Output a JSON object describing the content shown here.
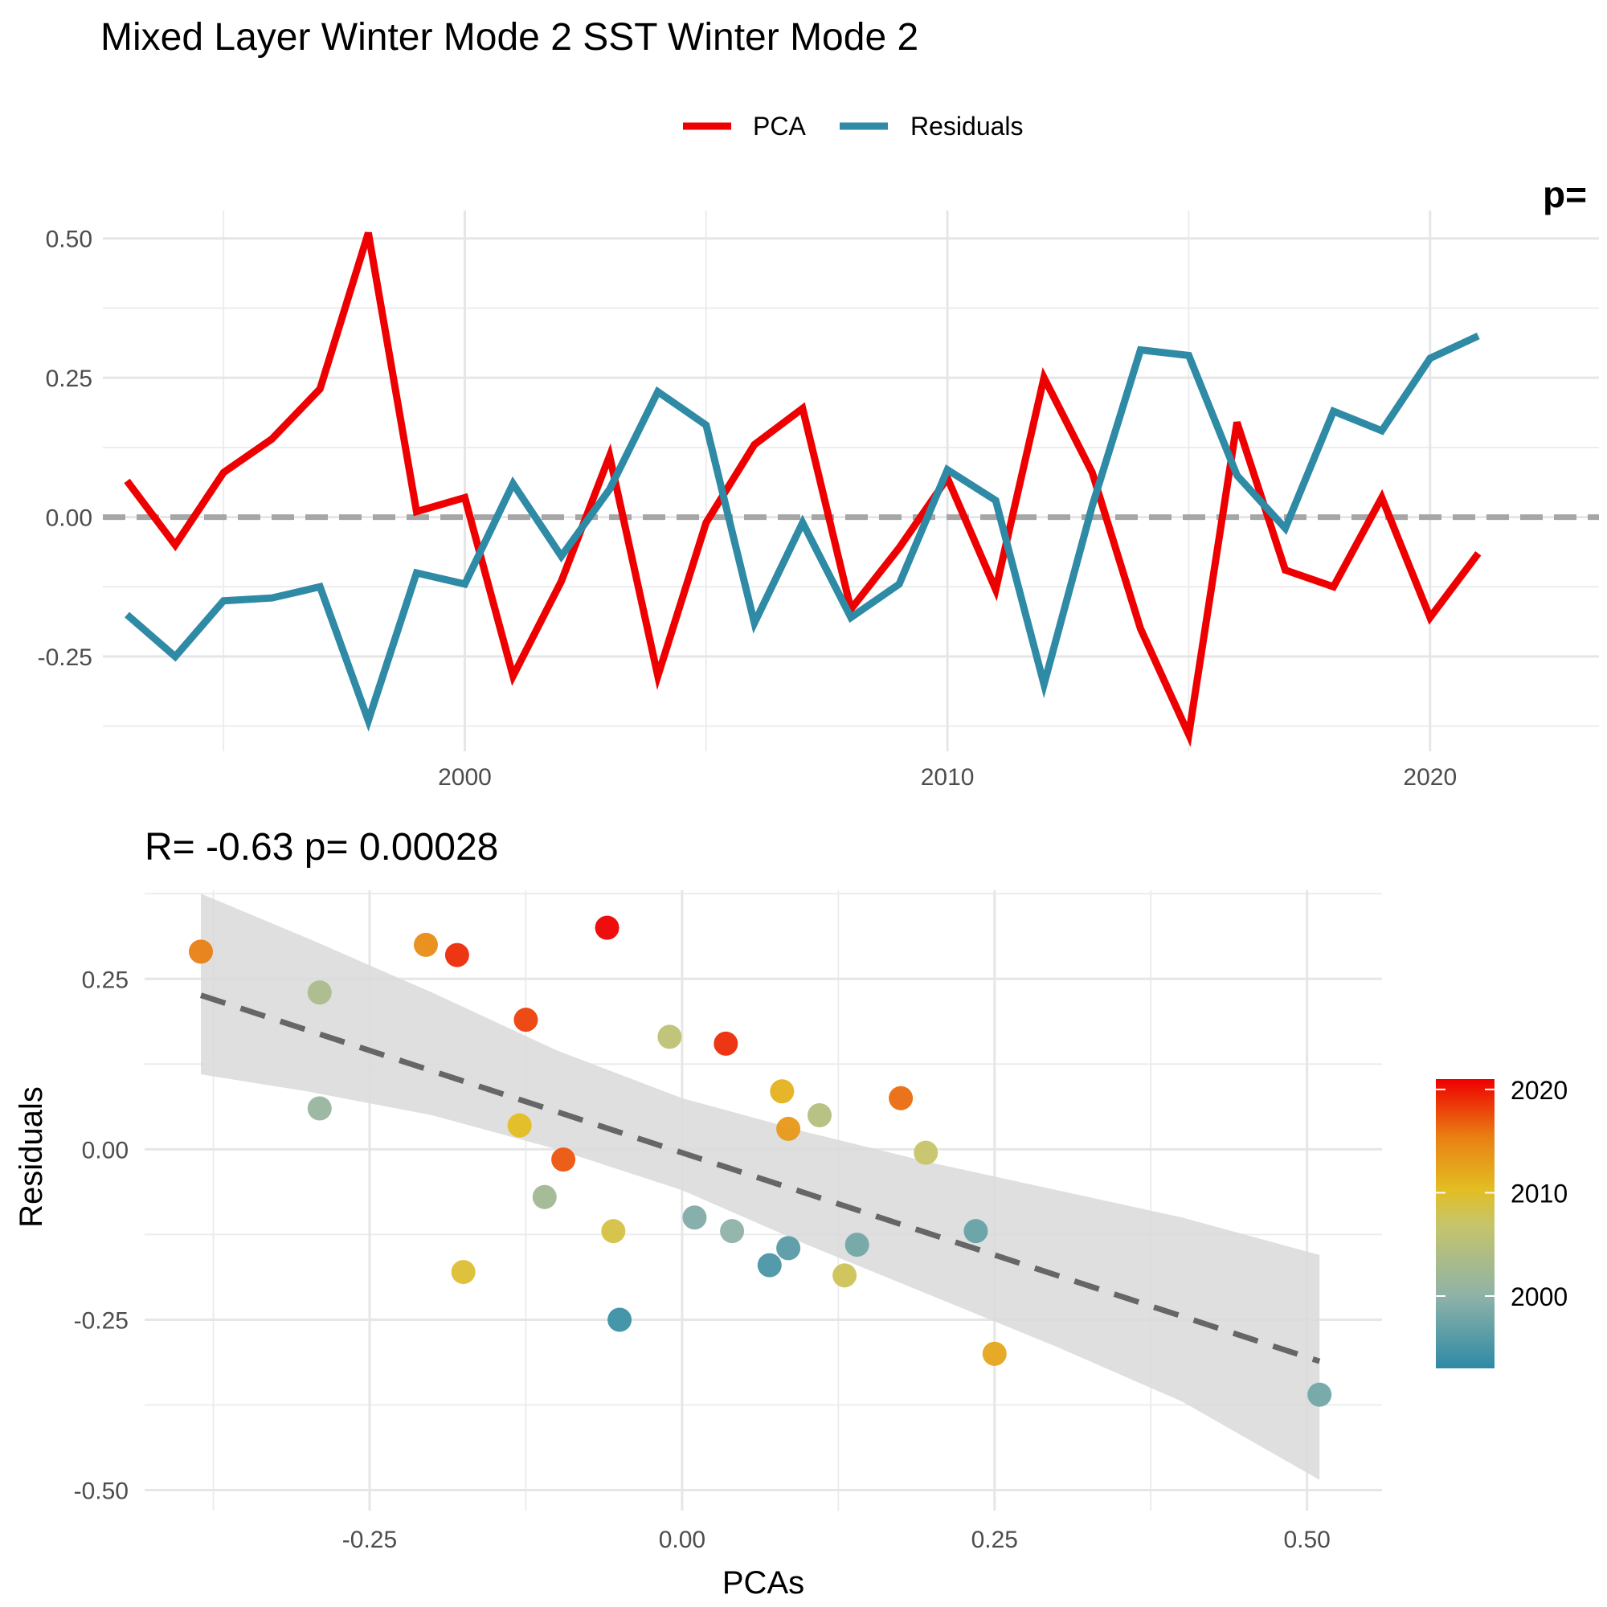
{
  "title": "Mixed Layer Winter Mode 2 SST Winter Mode 2",
  "legend": {
    "items": [
      {
        "label": "PCA",
        "color": "#ee0000"
      },
      {
        "label": "Residuals",
        "color": "#2e8aa5"
      }
    ]
  },
  "top_corner_text": "p=",
  "bottom_stats": "R= -0.63  p= 0.00028",
  "chart_data": [
    {
      "type": "line",
      "x_label": "",
      "y_label": "",
      "xlim": [
        1992.5,
        2023.5
      ],
      "ylim": [
        -0.42,
        0.55
      ],
      "x_ticks": [
        2000,
        2010,
        2020
      ],
      "y_ticks": [
        -0.25,
        0.0,
        0.25,
        0.5
      ],
      "y_tick_labels": [
        "-0.25",
        "0.00",
        "0.25",
        "0.50"
      ],
      "zero_line": {
        "y": 0,
        "style": "dashed",
        "color": "#a6a6a6"
      },
      "x": [
        1993,
        1994,
        1995,
        1996,
        1997,
        1998,
        1999,
        2000,
        2001,
        2002,
        2003,
        2004,
        2005,
        2006,
        2007,
        2008,
        2009,
        2010,
        2011,
        2012,
        2013,
        2014,
        2015,
        2016,
        2017,
        2018,
        2019,
        2020,
        2021
      ],
      "series": [
        {
          "name": "PCA",
          "color": "#ee0000",
          "values": [
            0.065,
            -0.05,
            0.08,
            0.14,
            0.23,
            0.51,
            0.01,
            0.035,
            -0.285,
            -0.115,
            0.11,
            -0.285,
            -0.01,
            0.13,
            0.195,
            -0.165,
            -0.055,
            0.07,
            -0.13,
            0.25,
            0.08,
            -0.2,
            -0.39,
            0.17,
            -0.095,
            -0.125,
            0.035,
            -0.18,
            -0.065
          ]
        },
        {
          "name": "Residuals",
          "color": "#2e8aa5",
          "values": [
            -0.175,
            -0.25,
            -0.15,
            -0.145,
            -0.125,
            -0.365,
            -0.1,
            -0.12,
            0.06,
            -0.07,
            0.05,
            0.225,
            0.165,
            -0.19,
            -0.01,
            -0.18,
            -0.12,
            0.085,
            0.03,
            -0.3,
            0.02,
            0.3,
            0.29,
            0.075,
            -0.02,
            0.19,
            0.155,
            0.285,
            0.325
          ]
        }
      ]
    },
    {
      "type": "scatter",
      "x_label": "PCAs",
      "y_label": "Residuals",
      "xlim": [
        -0.43,
        0.56
      ],
      "ylim": [
        -0.53,
        0.38
      ],
      "x_ticks": [
        -0.25,
        0.0,
        0.25,
        0.5
      ],
      "x_tick_labels": [
        "-0.25",
        "0.00",
        "0.25",
        "0.50"
      ],
      "y_ticks": [
        -0.5,
        -0.25,
        0.0,
        0.25
      ],
      "y_tick_labels": [
        "-0.50",
        "-0.25",
        "0.00",
        "0.25"
      ],
      "regression": {
        "slope": -0.6,
        "intercept": -0.005,
        "x_range": [
          -0.385,
          0.51
        ],
        "style": "dashed",
        "color": "#666666"
      },
      "confidence_band": {
        "x": [
          -0.385,
          -0.3,
          -0.2,
          -0.1,
          0.0,
          0.1,
          0.2,
          0.3,
          0.4,
          0.51
        ],
        "upper": [
          0.375,
          0.31,
          0.23,
          0.145,
          0.075,
          0.025,
          -0.02,
          -0.06,
          -0.1,
          -0.155
        ],
        "lower": [
          0.11,
          0.085,
          0.05,
          0.0,
          -0.06,
          -0.14,
          -0.215,
          -0.29,
          -0.37,
          -0.485
        ]
      },
      "colorbar": {
        "title": "",
        "ticks": [
          2000,
          2010,
          2020
        ],
        "range": [
          1993,
          2021
        ],
        "colors": [
          "#2e8aa5",
          "#e7c42a",
          "#ee0000"
        ]
      },
      "points": [
        {
          "x": -0.385,
          "y": 0.29,
          "year": 2015
        },
        {
          "x": -0.29,
          "y": 0.23,
          "year": 2003
        },
        {
          "x": -0.29,
          "y": 0.06,
          "year": 2001
        },
        {
          "x": -0.205,
          "y": 0.3,
          "year": 2014
        },
        {
          "x": -0.18,
          "y": 0.285,
          "year": 2019
        },
        {
          "x": -0.175,
          "y": -0.18,
          "year": 2009
        },
        {
          "x": -0.125,
          "y": 0.19,
          "year": 2018
        },
        {
          "x": -0.13,
          "y": 0.035,
          "year": 2010
        },
        {
          "x": -0.11,
          "y": -0.07,
          "year": 2002
        },
        {
          "x": -0.095,
          "y": -0.015,
          "year": 2017
        },
        {
          "x": -0.06,
          "y": 0.325,
          "year": 2021
        },
        {
          "x": -0.055,
          "y": -0.12,
          "year": 2008
        },
        {
          "x": -0.05,
          "y": -0.25,
          "year": 1994
        },
        {
          "x": -0.01,
          "y": 0.165,
          "year": 2005
        },
        {
          "x": 0.01,
          "y": -0.1,
          "year": 1999
        },
        {
          "x": 0.035,
          "y": 0.155,
          "year": 2019
        },
        {
          "x": 0.04,
          "y": -0.12,
          "year": 2000
        },
        {
          "x": 0.07,
          "y": -0.17,
          "year": 1995
        },
        {
          "x": 0.08,
          "y": 0.085,
          "year": 2011
        },
        {
          "x": 0.085,
          "y": 0.03,
          "year": 2013
        },
        {
          "x": 0.085,
          "y": -0.145,
          "year": 1996
        },
        {
          "x": 0.11,
          "y": 0.05,
          "year": 2004
        },
        {
          "x": 0.13,
          "y": -0.185,
          "year": 2007
        },
        {
          "x": 0.14,
          "y": -0.14,
          "year": 1998
        },
        {
          "x": 0.175,
          "y": 0.075,
          "year": 2016
        },
        {
          "x": 0.195,
          "y": -0.005,
          "year": 2006
        },
        {
          "x": 0.235,
          "y": -0.12,
          "year": 1997
        },
        {
          "x": 0.25,
          "y": -0.3,
          "year": 2012
        },
        {
          "x": 0.51,
          "y": -0.36,
          "year": 1998
        }
      ]
    }
  ]
}
